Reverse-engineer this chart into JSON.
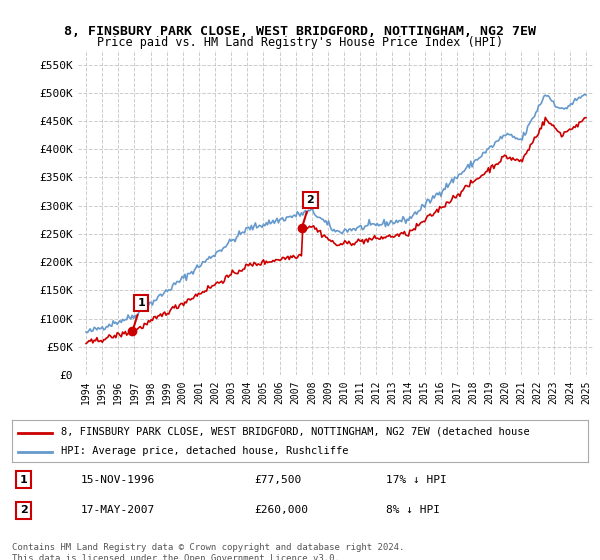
{
  "title": "8, FINSBURY PARK CLOSE, WEST BRIDGFORD, NOTTINGHAM, NG2 7EW",
  "subtitle": "Price paid vs. HM Land Registry's House Price Index (HPI)",
  "ylabel": "",
  "xlabel": "",
  "ylim": [
    0,
    575000
  ],
  "yticks": [
    0,
    50000,
    100000,
    150000,
    200000,
    250000,
    300000,
    350000,
    400000,
    450000,
    500000,
    550000
  ],
  "ytick_labels": [
    "£0",
    "£50K",
    "£100K",
    "£150K",
    "£200K",
    "£250K",
    "£300K",
    "£350K",
    "£400K",
    "£450K",
    "£500K",
    "£550K"
  ],
  "hpi_color": "#6699cc",
  "price_color": "#cc0000",
  "point_color": "#cc0000",
  "annotation_box_color": "#cc0000",
  "bg_color": "#ffffff",
  "grid_color": "#cccccc",
  "legend_label_red": "8, FINSBURY PARK CLOSE, WEST BRIDGFORD, NOTTINGHAM, NG2 7EW (detached house",
  "legend_label_blue": "HPI: Average price, detached house, Rushcliffe",
  "sale1_date": "15-NOV-1996",
  "sale1_price": "£77,500",
  "sale1_hpi": "17% ↓ HPI",
  "sale2_date": "17-MAY-2007",
  "sale2_price": "£260,000",
  "sale2_hpi": "8% ↓ HPI",
  "footer": "Contains HM Land Registry data © Crown copyright and database right 2024.\nThis data is licensed under the Open Government Licence v3.0.",
  "xtick_years": [
    "1994",
    "1995",
    "1996",
    "1997",
    "1998",
    "1999",
    "2000",
    "2001",
    "2002",
    "2003",
    "2004",
    "2005",
    "2006",
    "2007",
    "2008",
    "2009",
    "2010",
    "2011",
    "2012",
    "2013",
    "2014",
    "2015",
    "2016",
    "2017",
    "2018",
    "2019",
    "2020",
    "2021",
    "2022",
    "2023",
    "2024",
    "2025"
  ]
}
